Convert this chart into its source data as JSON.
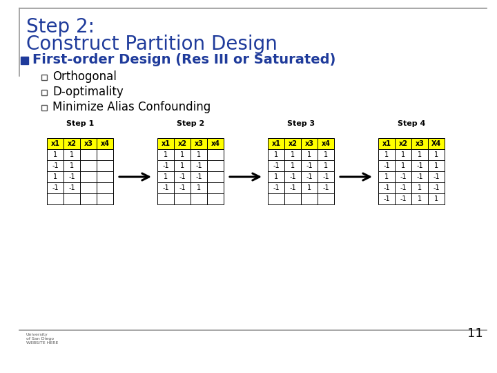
{
  "title_line1": "Step 2:",
  "title_line2": "Construct Partition Design",
  "title_color": "#1F3B9B",
  "bullet_header": "First-order Design (Res III or Saturated)",
  "bullet_color": "#1F3B9B",
  "bullet_square_color": "#1F3B9B",
  "sub_bullets": [
    "Orthogonal",
    "D-optimality",
    "Minimize Alias Confounding"
  ],
  "sub_bullet_color": "#000000",
  "background_color": "#FFFFFF",
  "step_labels": [
    "Step 1",
    "Step 2",
    "Step 3",
    "Step 4"
  ],
  "header_bg": "#FFFF00",
  "step1_headers": [
    "x1",
    "x2",
    "x3",
    "x4"
  ],
  "step1_data": [
    [
      "1",
      "1",
      "",
      ""
    ],
    [
      "-1",
      "1",
      "",
      ""
    ],
    [
      "1",
      "-1",
      "",
      ""
    ],
    [
      "-1",
      "-1",
      "",
      ""
    ],
    [
      "",
      "",
      "",
      ""
    ]
  ],
  "step2_headers": [
    "x1",
    "x2",
    "x3",
    "x4"
  ],
  "step2_data": [
    [
      "1",
      "1",
      "1",
      ""
    ],
    [
      "-1",
      "1",
      "-1",
      ""
    ],
    [
      "1",
      "-1",
      "-1",
      ""
    ],
    [
      "-1",
      "-1",
      "1",
      ""
    ],
    [
      "",
      "",
      "",
      ""
    ]
  ],
  "step3_headers": [
    "x1",
    "x2",
    "x3",
    "x4"
  ],
  "step3_data": [
    [
      "1",
      "1",
      "1",
      "1"
    ],
    [
      "-1",
      "1",
      "-1",
      "1"
    ],
    [
      "1",
      "-1",
      "-1",
      "-1"
    ],
    [
      "-1",
      "-1",
      "1",
      "-1"
    ],
    [
      "",
      "",
      "",
      ""
    ]
  ],
  "step4_headers": [
    "x1",
    "x2",
    "x3",
    "X4"
  ],
  "step4_data": [
    [
      "1",
      "1",
      "1",
      "1"
    ],
    [
      "-1",
      "1",
      "-1",
      "1"
    ],
    [
      "1",
      "-1",
      "-1",
      "-1"
    ],
    [
      "-1",
      "-1",
      "1",
      "-1"
    ],
    [
      "-1",
      "-1",
      "1",
      "1"
    ]
  ],
  "page_number": "11",
  "arrow_color": "#000000"
}
